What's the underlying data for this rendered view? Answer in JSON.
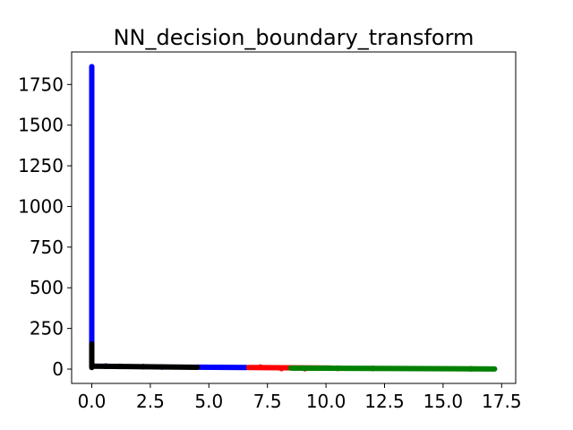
{
  "chart_data": {
    "type": "scatter",
    "title": "NN_decision_boundary_transform",
    "xlabel": "",
    "ylabel": "",
    "xlim": [
      -0.86,
      18.1
    ],
    "ylim": [
      -88,
      1950
    ],
    "xticks": [
      0.0,
      2.5,
      5.0,
      7.5,
      10.0,
      12.5,
      15.0,
      17.5
    ],
    "xtick_labels": [
      "0.0",
      "2.5",
      "5.0",
      "7.5",
      "10.0",
      "12.5",
      "15.0",
      "17.5"
    ],
    "yticks": [
      0,
      250,
      500,
      750,
      1000,
      1250,
      1500,
      1750
    ],
    "ytick_labels": [
      "0",
      "250",
      "500",
      "750",
      "1000",
      "1250",
      "1500",
      "1750"
    ],
    "grid": false,
    "legend": "none",
    "series": [
      {
        "color": "#0000ff",
        "segments": [
          {
            "x": [
              0.0,
              0.0
            ],
            "y": [
              150,
              1860
            ]
          },
          {
            "x": [
              4.5,
              6.6
            ],
            "y": [
              12,
              10
            ]
          }
        ],
        "points": [
          {
            "x": 0.6,
            "y": 18
          },
          {
            "x": 1.2,
            "y": 17
          },
          {
            "x": 2.2,
            "y": 15
          },
          {
            "x": 3.0,
            "y": 13
          }
        ]
      },
      {
        "color": "#000000",
        "segments": [
          {
            "x": [
              0.0,
              0.0
            ],
            "y": [
              10,
              155
            ]
          },
          {
            "x": [
              0.0,
              4.5
            ],
            "y": [
              18,
              11
            ]
          }
        ],
        "points": []
      },
      {
        "color": "#ff0000",
        "segments": [
          {
            "x": [
              6.7,
              10.2
            ],
            "y": [
              10,
              6
            ]
          }
        ],
        "points": [
          {
            "x": 7.2,
            "y": 12
          },
          {
            "x": 8.1,
            "y": 4
          },
          {
            "x": 9.1,
            "y": 3
          },
          {
            "x": 10.5,
            "y": 5
          },
          {
            "x": 12.0,
            "y": 4
          },
          {
            "x": 16.2,
            "y": 2
          }
        ]
      },
      {
        "color": "#008000",
        "segments": [
          {
            "x": [
              8.5,
              17.2
            ],
            "y": [
              6,
              1
            ]
          }
        ],
        "points": []
      }
    ]
  }
}
